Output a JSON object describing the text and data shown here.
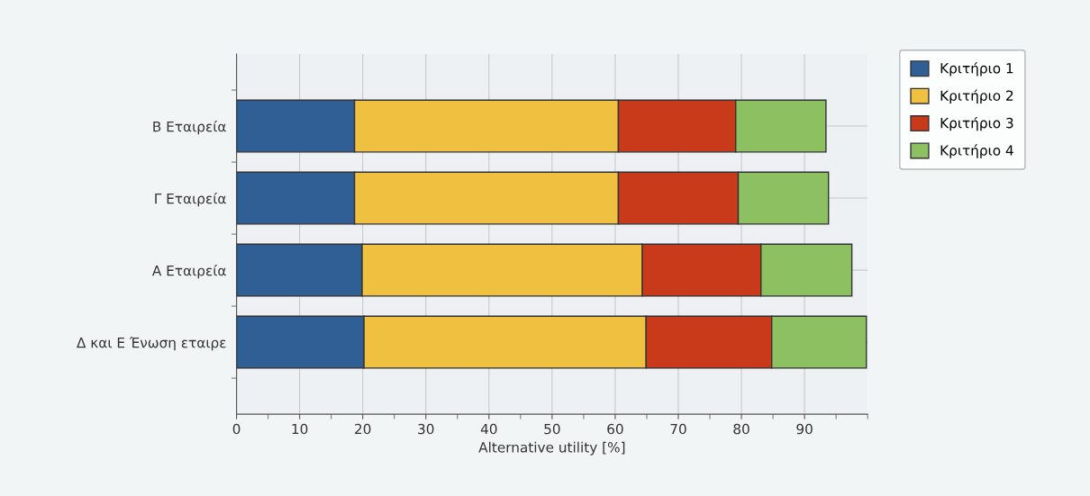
{
  "chart_data": {
    "type": "bar",
    "orientation": "horizontal",
    "stacked": true,
    "categories": [
      "Β Εταιρεία",
      "Γ Εταιρεία",
      "Α Εταιρεία",
      "Δ και Ε Ένωση εταιρε"
    ],
    "series": [
      {
        "name": "Κριτήριο 1",
        "color": "#2f5f95",
        "values": [
          18.7,
          18.7,
          19.9,
          20.2
        ]
      },
      {
        "name": "Κριτήριο 2",
        "color": "#f0c040",
        "values": [
          41.8,
          41.8,
          44.4,
          44.7
        ]
      },
      {
        "name": "Κριτήριο 3",
        "color": "#c83a1a",
        "values": [
          18.6,
          19.0,
          18.8,
          19.9
        ]
      },
      {
        "name": "Κριτήριο 4",
        "color": "#8cc060",
        "values": [
          14.3,
          14.3,
          14.4,
          15.0
        ]
      }
    ],
    "xlabel": "Alternative utility [%]",
    "xlim": [
      0,
      100
    ],
    "xticks": [
      0,
      10,
      20,
      30,
      40,
      50,
      60,
      70,
      80,
      90
    ],
    "grid": true,
    "legend": "top right"
  }
}
